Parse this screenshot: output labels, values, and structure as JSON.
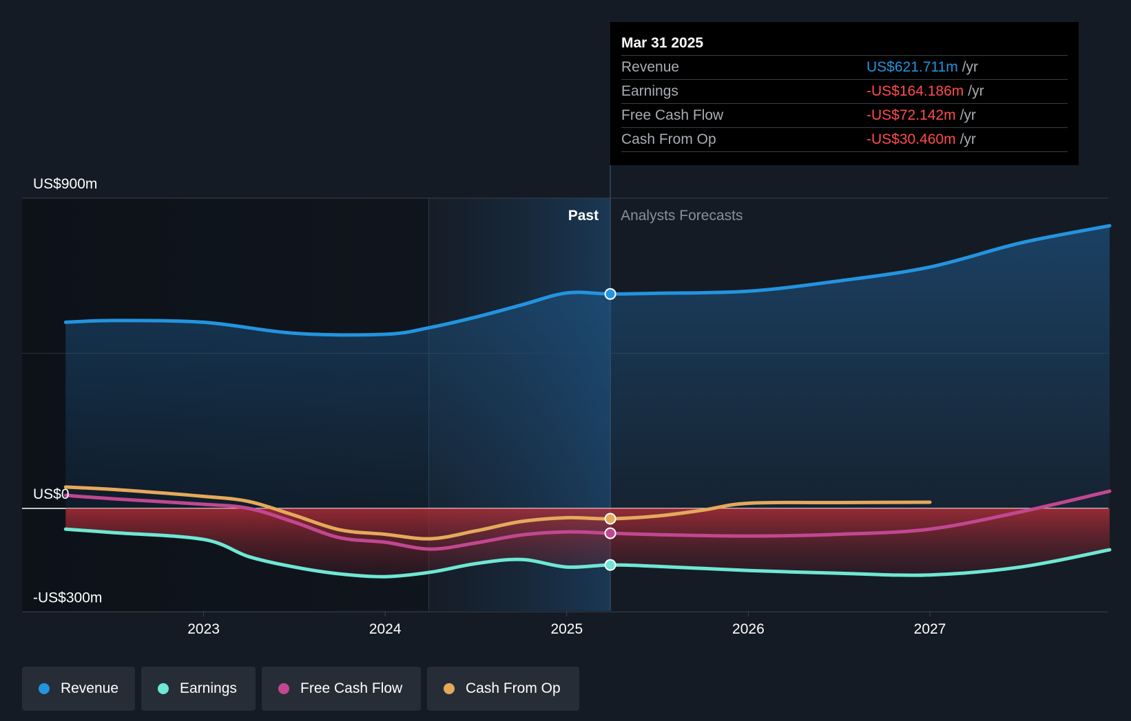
{
  "chart_data": {
    "type": "line",
    "y_axis": {
      "labels": [
        "US$900m",
        "US$0",
        "-US$300m"
      ],
      "ylim": [
        -300,
        900
      ]
    },
    "x_axis": {
      "ticks": [
        "2023",
        "2024",
        "2025",
        "2026",
        "2027"
      ],
      "xlim": [
        2022.0,
        2027.99
      ]
    },
    "regions": {
      "past_label": "Past",
      "forecast_label": "Analysts Forecasts",
      "split_x": 2025.24
    },
    "series": [
      {
        "name": "Revenue",
        "color": "#2394df",
        "x": [
          2022.24,
          2022.5,
          2023.0,
          2023.5,
          2024.0,
          2024.25,
          2024.5,
          2024.75,
          2025.0,
          2025.24,
          2025.5,
          2026.0,
          2026.5,
          2027.0,
          2027.5,
          2027.99
        ],
        "y": [
          540,
          545,
          540,
          508,
          505,
          525,
          555,
          590,
          625,
          622,
          624,
          630,
          660,
          700,
          770,
          820
        ]
      },
      {
        "name": "Earnings",
        "color": "#6ee7d4",
        "x": [
          2022.24,
          2022.5,
          2023.0,
          2023.25,
          2023.5,
          2023.75,
          2024.0,
          2024.25,
          2024.5,
          2024.75,
          2025.0,
          2025.24,
          2025.5,
          2026.0,
          2026.5,
          2027.0,
          2027.5,
          2027.99
        ],
        "y": [
          -60,
          -70,
          -90,
          -140,
          -170,
          -190,
          -198,
          -185,
          -160,
          -148,
          -170,
          -164,
          -168,
          -180,
          -188,
          -193,
          -170,
          -120
        ]
      },
      {
        "name": "Free Cash Flow",
        "color": "#c24791",
        "x": [
          2022.24,
          2022.5,
          2023.0,
          2023.25,
          2023.5,
          2023.75,
          2024.0,
          2024.25,
          2024.5,
          2024.75,
          2025.0,
          2025.24,
          2025.5,
          2026.0,
          2026.5,
          2027.0,
          2027.5,
          2027.99
        ],
        "y": [
          38,
          28,
          12,
          0,
          -40,
          -85,
          -98,
          -118,
          -100,
          -77,
          -68,
          -72,
          -76,
          -80,
          -75,
          -60,
          -10,
          50
        ]
      },
      {
        "name": "Cash From Op",
        "color": "#e5a95b",
        "x": [
          2022.24,
          2022.5,
          2023.0,
          2023.25,
          2023.5,
          2023.75,
          2024.0,
          2024.25,
          2024.5,
          2024.75,
          2025.0,
          2025.24,
          2025.5,
          2025.75,
          2026.0,
          2026.5,
          2027.0
        ],
        "y": [
          62,
          55,
          35,
          20,
          -20,
          -62,
          -75,
          -88,
          -65,
          -38,
          -27,
          -30,
          -22,
          -5,
          15,
          17,
          18
        ]
      }
    ]
  },
  "tooltip": {
    "date": "Mar 31 2025",
    "rows": [
      {
        "label": "Revenue",
        "value": "US$621.711m",
        "unit": "/yr",
        "color": "#2394df"
      },
      {
        "label": "Earnings",
        "value": "-US$164.186m",
        "unit": "/yr",
        "color": "#ff4c4c"
      },
      {
        "label": "Free Cash Flow",
        "value": "-US$72.142m",
        "unit": "/yr",
        "color": "#ff4c4c"
      },
      {
        "label": "Cash From Op",
        "value": "-US$30.460m",
        "unit": "/yr",
        "color": "#ff4c4c"
      }
    ]
  },
  "legend": [
    {
      "label": "Revenue",
      "color": "#2394df"
    },
    {
      "label": "Earnings",
      "color": "#6ee7d4"
    },
    {
      "label": "Free Cash Flow",
      "color": "#c24791"
    },
    {
      "label": "Cash From Op",
      "color": "#e5a95b"
    }
  ]
}
